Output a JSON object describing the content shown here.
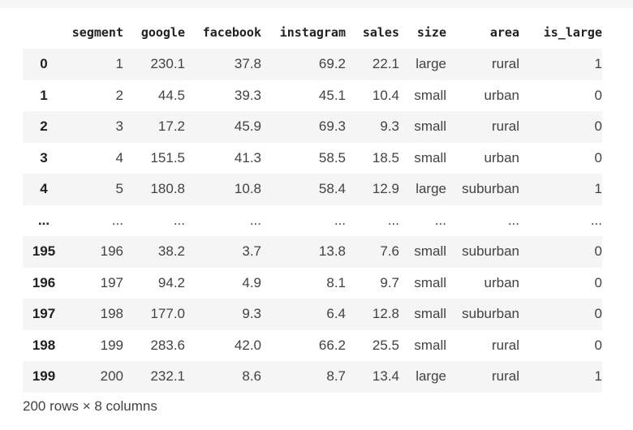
{
  "table": {
    "index_header": "",
    "columns": [
      "segment",
      "google",
      "facebook",
      "instagram",
      "sales",
      "size",
      "area",
      "is_large"
    ],
    "rows": [
      {
        "index": "0",
        "cells": [
          "1",
          "230.1",
          "37.8",
          "69.2",
          "22.1",
          "large",
          "rural",
          "1"
        ]
      },
      {
        "index": "1",
        "cells": [
          "2",
          "44.5",
          "39.3",
          "45.1",
          "10.4",
          "small",
          "urban",
          "0"
        ]
      },
      {
        "index": "2",
        "cells": [
          "3",
          "17.2",
          "45.9",
          "69.3",
          "9.3",
          "small",
          "rural",
          "0"
        ]
      },
      {
        "index": "3",
        "cells": [
          "4",
          "151.5",
          "41.3",
          "58.5",
          "18.5",
          "small",
          "urban",
          "0"
        ]
      },
      {
        "index": "4",
        "cells": [
          "5",
          "180.8",
          "10.8",
          "58.4",
          "12.9",
          "large",
          "suburban",
          "1"
        ]
      },
      {
        "index": "...",
        "cells": [
          "...",
          "...",
          "...",
          "...",
          "...",
          "...",
          "...",
          "..."
        ]
      },
      {
        "index": "195",
        "cells": [
          "196",
          "38.2",
          "3.7",
          "13.8",
          "7.6",
          "small",
          "suburban",
          "0"
        ]
      },
      {
        "index": "196",
        "cells": [
          "197",
          "94.2",
          "4.9",
          "8.1",
          "9.7",
          "small",
          "urban",
          "0"
        ]
      },
      {
        "index": "197",
        "cells": [
          "198",
          "177.0",
          "9.3",
          "6.4",
          "12.8",
          "small",
          "suburban",
          "0"
        ]
      },
      {
        "index": "198",
        "cells": [
          "199",
          "283.6",
          "42.0",
          "66.2",
          "25.5",
          "small",
          "rural",
          "0"
        ]
      },
      {
        "index": "199",
        "cells": [
          "200",
          "232.1",
          "8.6",
          "8.7",
          "13.4",
          "large",
          "rural",
          "1"
        ]
      }
    ]
  },
  "summary": "200 rows × 8 columns"
}
